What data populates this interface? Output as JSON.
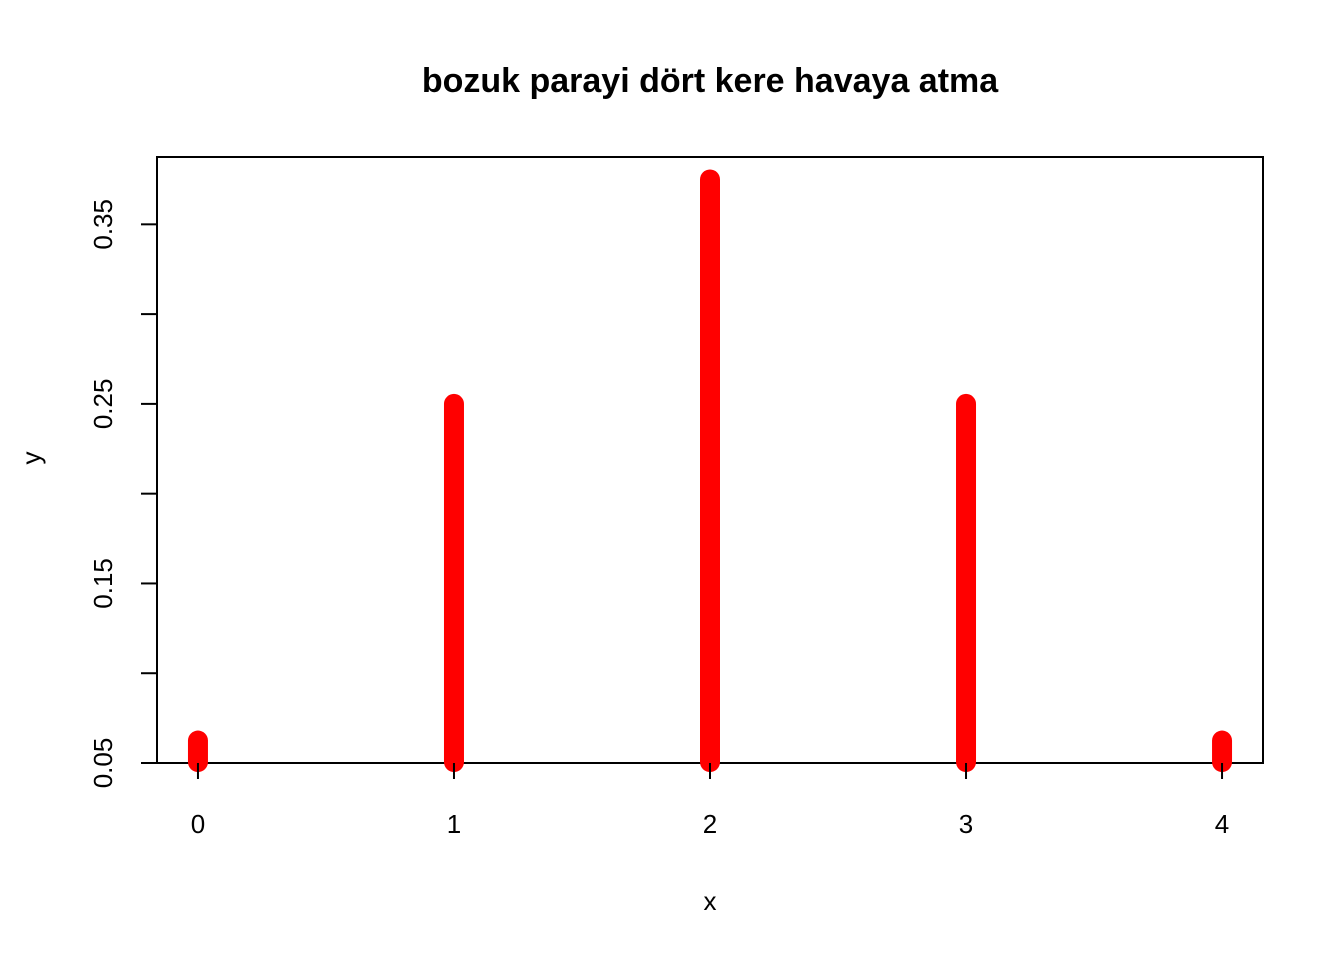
{
  "chart_data": {
    "type": "bar",
    "title": "bozuk parayi dört kere havaya atma",
    "xlabel": "x",
    "ylabel": "y",
    "x": [
      0,
      1,
      2,
      3,
      4
    ],
    "values": [
      0.0625,
      0.25,
      0.375,
      0.25,
      0.0625
    ],
    "xlim": [
      -0.16,
      4.16
    ],
    "ylim": [
      0.05,
      0.3875
    ],
    "x_ticks": [
      0,
      1,
      2,
      3,
      4
    ],
    "x_tick_labels": [
      "0",
      "1",
      "2",
      "3",
      "4"
    ],
    "y_ticks": [
      0.05,
      0.1,
      0.15,
      0.2,
      0.25,
      0.3,
      0.35
    ],
    "y_tick_labels": [
      "0.05",
      "",
      "0.15",
      "",
      "0.25",
      "",
      "0.35"
    ],
    "series_color": "#ff0000",
    "grid": false
  }
}
